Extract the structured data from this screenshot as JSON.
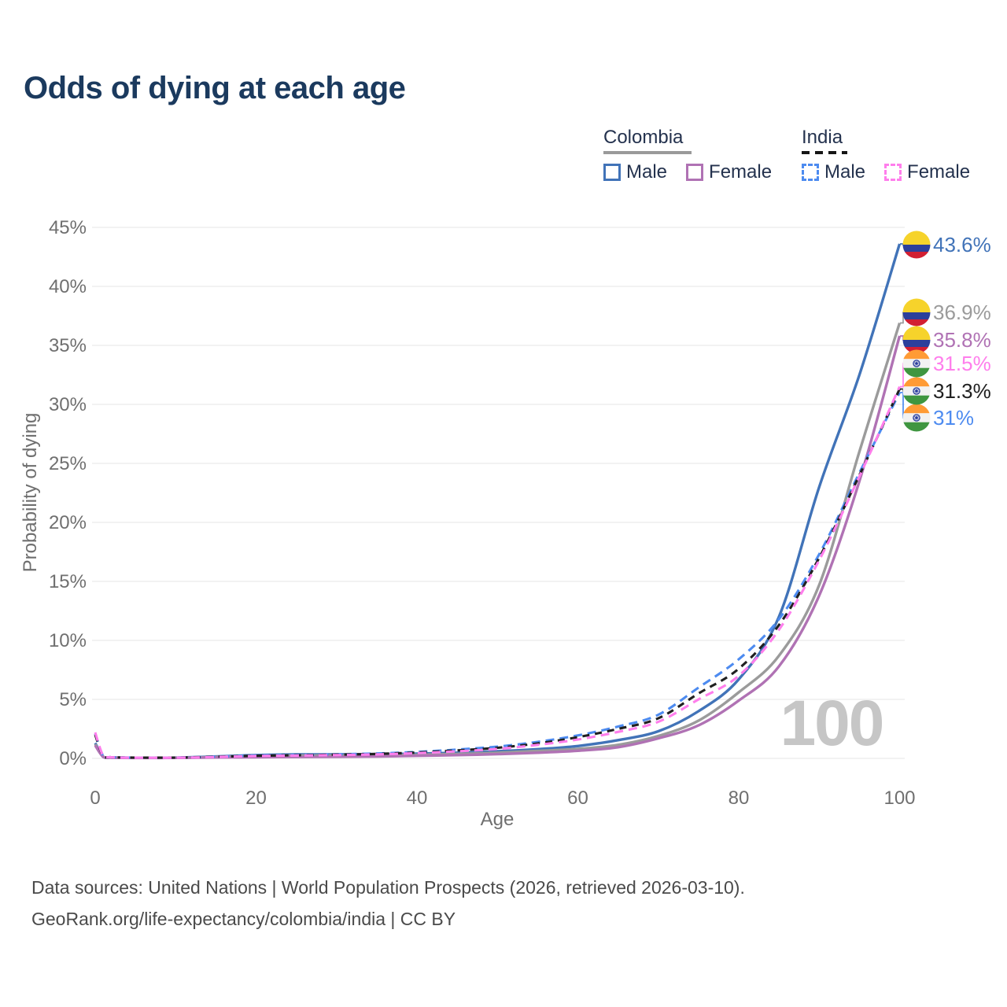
{
  "title": "Odds of dying at each age",
  "watermark": "100",
  "legend": {
    "groups": [
      {
        "id": "colombia",
        "label": "Colombia",
        "line_style": "solid",
        "underline_color": "#9a9a9a",
        "items": [
          {
            "id": "colombia_male",
            "label": "Male",
            "color": "#4173b8"
          },
          {
            "id": "colombia_female",
            "label": "Female",
            "color": "#b072b4"
          }
        ]
      },
      {
        "id": "india",
        "label": "India",
        "line_style": "dashed",
        "underline_color": "#161616",
        "items": [
          {
            "id": "india_male",
            "label": "Male",
            "color": "#4d8bf0"
          },
          {
            "id": "india_female",
            "label": "Female",
            "color": "#ff7eec"
          }
        ]
      }
    ]
  },
  "footer": {
    "line1": "Data sources: United Nations | World Population Prospects (2026, retrieved 2026-03-10).",
    "line2": "GeoRank.org/life-expectancy/colombia/india | CC BY"
  },
  "chart_data": {
    "type": "line",
    "title": "Odds of dying at each age",
    "xlabel": "Age",
    "ylabel": "Probability of dying",
    "xlim": [
      0,
      100
    ],
    "ylim": [
      0,
      45
    ],
    "x_ticks": [
      0,
      20,
      40,
      60,
      80,
      100
    ],
    "y_ticks": [
      0,
      5,
      10,
      15,
      20,
      25,
      30,
      35,
      40,
      45
    ],
    "y_tick_suffix": "%",
    "grid": true,
    "legend_position": "top-right",
    "age_watermark": "100",
    "ages": [
      0,
      1,
      2,
      5,
      10,
      15,
      20,
      25,
      30,
      35,
      40,
      45,
      50,
      55,
      60,
      65,
      70,
      75,
      80,
      85,
      90,
      95,
      100
    ],
    "series": [
      {
        "id": "colombia_male",
        "name": "Colombia Male",
        "country": "Colombia",
        "sex": "male",
        "color": "#4173b8",
        "dashed": false,
        "flag": "colombia",
        "end_label": "43.6%",
        "values": [
          1.3,
          0.15,
          0.08,
          0.05,
          0.06,
          0.16,
          0.28,
          0.33,
          0.34,
          0.36,
          0.4,
          0.48,
          0.6,
          0.78,
          1.05,
          1.55,
          2.3,
          4.0,
          6.7,
          12.0,
          23.0,
          32.5,
          43.6
        ]
      },
      {
        "id": "colombia_total",
        "name": "Colombia (both sexes)",
        "country": "Colombia",
        "sex": "total",
        "color": "#9b9b9b",
        "dashed": false,
        "flag": "colombia",
        "end_label": "36.9%",
        "values": [
          1.2,
          0.14,
          0.07,
          0.05,
          0.05,
          0.12,
          0.2,
          0.24,
          0.25,
          0.27,
          0.31,
          0.38,
          0.48,
          0.63,
          0.8,
          1.15,
          1.9,
          3.2,
          5.6,
          8.7,
          14.7,
          26.0,
          36.9
        ]
      },
      {
        "id": "colombia_female",
        "name": "Colombia Female",
        "country": "Colombia",
        "sex": "female",
        "color": "#b072b4",
        "dashed": false,
        "flag": "colombia",
        "end_label": "35.8%",
        "values": [
          1.1,
          0.12,
          0.06,
          0.04,
          0.05,
          0.08,
          0.1,
          0.12,
          0.14,
          0.17,
          0.22,
          0.28,
          0.36,
          0.48,
          0.65,
          0.95,
          1.7,
          2.8,
          4.9,
          7.8,
          13.8,
          23.5,
          35.8
        ]
      },
      {
        "id": "india_male",
        "name": "India Male",
        "country": "India",
        "sex": "male",
        "color": "#4d8bf0",
        "dashed": true,
        "flag": "india",
        "end_label": "31%",
        "values": [
          2.1,
          0.2,
          0.1,
          0.07,
          0.07,
          0.15,
          0.25,
          0.3,
          0.35,
          0.42,
          0.55,
          0.75,
          1.0,
          1.4,
          1.95,
          2.7,
          3.7,
          6.0,
          8.4,
          11.8,
          17.3,
          24.2,
          31.0
        ]
      },
      {
        "id": "india_total",
        "name": "India (both sexes)",
        "country": "India",
        "sex": "total",
        "color": "#202020",
        "dashed": true,
        "flag": "india",
        "end_label": "31.3%",
        "values": [
          2.0,
          0.19,
          0.1,
          0.07,
          0.07,
          0.14,
          0.22,
          0.27,
          0.32,
          0.38,
          0.5,
          0.68,
          0.9,
          1.27,
          1.8,
          2.5,
          3.4,
          5.5,
          7.6,
          11.3,
          17.0,
          24.0,
          31.3
        ]
      },
      {
        "id": "india_female",
        "name": "India Female",
        "country": "India",
        "sex": "female",
        "color": "#ff7eec",
        "dashed": true,
        "flag": "india",
        "end_label": "31.5%",
        "values": [
          2.2,
          0.21,
          0.1,
          0.06,
          0.06,
          0.12,
          0.2,
          0.24,
          0.28,
          0.34,
          0.45,
          0.6,
          0.8,
          1.15,
          1.6,
          2.25,
          3.1,
          5.0,
          7.0,
          10.9,
          16.8,
          23.9,
          31.5
        ]
      }
    ],
    "colors": {
      "colombia_flag": {
        "yellow": "#f6d32b",
        "blue": "#2c3f9b",
        "red": "#d21f32"
      },
      "india_flag": {
        "saffron": "#ff9b35",
        "white": "#f2f2f2",
        "green": "#3f9640",
        "navy": "#2b3f9e"
      },
      "grid": "#e9e9e9",
      "axis_text": "#6f6f6f",
      "watermark": "#c6c6c6",
      "title_text": "#1b3a5e"
    }
  }
}
